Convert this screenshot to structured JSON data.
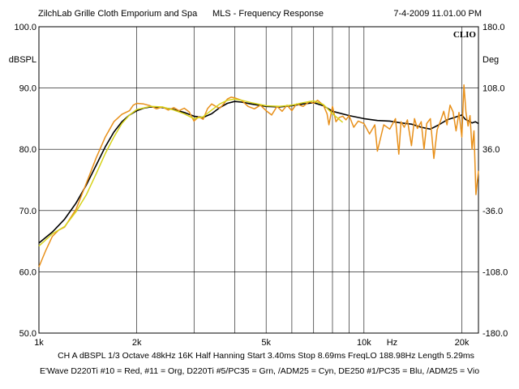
{
  "header": {
    "left": "ZilchLab Grille Cloth Emporium and Spa",
    "center": "MLS - Frequency Response",
    "right": "7-4-2009 11.01.00 PM"
  },
  "footer": {
    "settings": "CH A   dBSPL   1/3 Octave   48kHz   16K   Half Hanning   Start 3.40ms    Stop 8.69ms    FreqLO 188.98Hz   Length 5.29ms",
    "legend": "E'Wave D220Ti #10 = Red, #11 = Org, D220Ti #5/PC35 = Grn, /ADM25 = Cyn, DE250 #1/PC35 = Blu, /ADM25 = Vio"
  },
  "colors": {
    "black": "#000000",
    "orange": "#e8901a",
    "yellow": "#d6d21a",
    "grid": "#000000"
  },
  "chart_data": {
    "type": "line",
    "brand": "CLIO",
    "x_scale": "log",
    "xlim": [
      1000,
      22500
    ],
    "x_ticks": [
      {
        "v": 1000,
        "label": "1k"
      },
      {
        "v": 2000,
        "label": "2k"
      },
      {
        "v": 5000,
        "label": "5k"
      },
      {
        "v": 10000,
        "label": "10k"
      },
      {
        "v": 20000,
        "label": "20k"
      }
    ],
    "x_unit_label": "Hz",
    "x_unit_at": 12200,
    "x_grid": [
      2000,
      3000,
      4000,
      5000,
      6000,
      7000,
      8000,
      9000,
      10000,
      20000
    ],
    "y_left": {
      "unit": "dBSPL",
      "lim": [
        50,
        100
      ],
      "ticks": [
        "50.0",
        "60.0",
        "70.0",
        "80.0",
        "90.0",
        "100.0"
      ]
    },
    "y_right": {
      "unit": "Deg",
      "lim": [
        -180,
        180
      ],
      "ticks": [
        "-180.0",
        "-108.0",
        "-36.0",
        "36.0",
        "108.0",
        "180.0"
      ]
    },
    "series": [
      {
        "color": "#000000",
        "x": [
          1000,
          1100,
          1200,
          1300,
          1400,
          1500,
          1600,
          1700,
          1800,
          1900,
          2000,
          2100,
          2200,
          2400,
          2600,
          2800,
          3000,
          3200,
          3400,
          3600,
          3800,
          4000,
          4200,
          4500,
          5000,
          5500,
          6000,
          6500,
          7000,
          7500,
          8000,
          9000,
          10000,
          11000,
          12000,
          13000,
          14000,
          15000,
          16000,
          17000,
          18000,
          19000,
          20000,
          20500,
          21000,
          21500,
          22000,
          22500
        ],
        "y": [
          64.7,
          66.5,
          68.6,
          71.2,
          74.2,
          77.4,
          80.4,
          82.8,
          84.5,
          85.6,
          86.3,
          86.7,
          86.9,
          86.8,
          86.5,
          86.0,
          85.4,
          85.2,
          85.8,
          86.8,
          87.5,
          87.8,
          87.7,
          87.4,
          87.0,
          86.9,
          87.1,
          87.4,
          87.6,
          87.1,
          86.2,
          85.5,
          85.0,
          84.7,
          84.6,
          84.3,
          84.1,
          83.6,
          83.3,
          84.0,
          84.8,
          85.2,
          85.6,
          84.9,
          84.6,
          84.3,
          84.5,
          84.2
        ]
      },
      {
        "color": "#e8901a",
        "x": [
          1000,
          1050,
          1100,
          1150,
          1200,
          1300,
          1400,
          1500,
          1600,
          1700,
          1800,
          1900,
          1950,
          2000,
          2100,
          2200,
          2300,
          2400,
          2500,
          2600,
          2700,
          2800,
          2900,
          3000,
          3100,
          3200,
          3300,
          3400,
          3500,
          3600,
          3700,
          3800,
          3900,
          4000,
          4200,
          4400,
          4600,
          4800,
          5000,
          5200,
          5400,
          5600,
          5800,
          6000,
          6200,
          6500,
          6800,
          7000,
          7200,
          7500,
          7700,
          7800,
          8000,
          8200,
          8400,
          8600,
          8800,
          9000,
          9300,
          9600,
          10000,
          10400,
          10800,
          11000,
          11500,
          12000,
          12500,
          12800,
          13000,
          13300,
          13600,
          14000,
          14300,
          14600,
          15000,
          15300,
          15600,
          16000,
          16400,
          16800,
          17200,
          17600,
          18000,
          18400,
          18800,
          19200,
          19600,
          20000,
          20300,
          20600,
          20900,
          21200,
          21500,
          21800,
          22100,
          22500
        ],
        "y": [
          60.8,
          63.5,
          65.8,
          66.8,
          67.3,
          70.2,
          74.5,
          78.6,
          82.0,
          84.5,
          85.7,
          86.3,
          87.2,
          87.5,
          87.4,
          87.1,
          86.6,
          86.9,
          86.4,
          86.8,
          86.3,
          86.7,
          86.1,
          84.6,
          85.3,
          84.9,
          86.6,
          87.4,
          87.0,
          86.7,
          87.4,
          88.2,
          88.5,
          88.4,
          88.0,
          87.0,
          86.6,
          87.2,
          86.3,
          85.6,
          87.0,
          86.2,
          87.2,
          86.3,
          87.4,
          87.0,
          87.8,
          87.5,
          88.0,
          87.2,
          85.8,
          84.0,
          87.0,
          84.5,
          85.2,
          85.4,
          84.8,
          85.5,
          83.6,
          84.6,
          84.2,
          82.5,
          84.0,
          79.7,
          84.0,
          83.3,
          85.0,
          79.2,
          84.5,
          83.6,
          84.8,
          80.6,
          85.0,
          83.4,
          84.5,
          80.0,
          84.2,
          85.0,
          78.5,
          83.2,
          84.6,
          86.2,
          84.0,
          87.2,
          86.1,
          83.0,
          86.0,
          82.0,
          90.5,
          86.0,
          83.8,
          85.5,
          80.0,
          83.0,
          72.6,
          76.5
        ]
      },
      {
        "color": "#d6d21a",
        "x": [
          1000,
          1100,
          1200,
          1300,
          1400,
          1500,
          1600,
          1700,
          1800,
          1900,
          2000,
          2200,
          2400,
          2600,
          2800,
          3000,
          3200,
          3400,
          3600,
          3800,
          4000,
          4200,
          4500,
          5000,
          5500,
          6000,
          6500,
          7000,
          7500,
          7800,
          8200,
          8600
        ],
        "y": [
          64.2,
          66.2,
          67.4,
          69.8,
          72.6,
          76.0,
          79.3,
          82.0,
          84.2,
          85.6,
          86.5,
          87.0,
          86.9,
          86.4,
          85.8,
          85.0,
          85.3,
          86.4,
          87.4,
          88.0,
          88.2,
          88.0,
          87.6,
          87.1,
          87.0,
          87.2,
          87.6,
          87.9,
          87.3,
          86.4,
          85.3,
          84.4
        ]
      }
    ]
  }
}
